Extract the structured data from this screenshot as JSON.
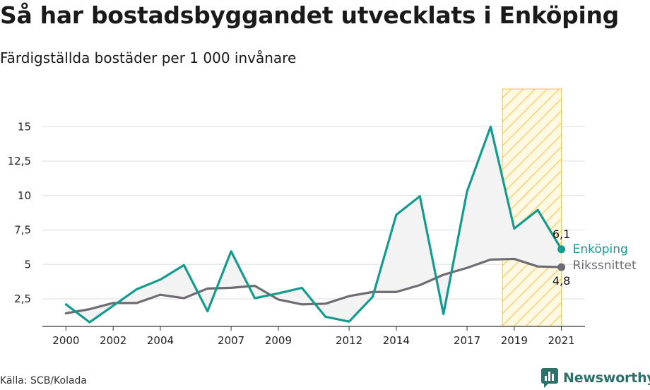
{
  "title": "Så har bostadsbyggandet utvecklats i Enköping",
  "subtitle": "Färdigställda bostäder per 1 000 invånare",
  "source": "Källa: SCB/Kolada",
  "brand": {
    "name": "Newsworthy",
    "icon": "newsworthy-logo-icon",
    "color": "#2f6f6a"
  },
  "chart_data": {
    "type": "line",
    "x": [
      2000,
      2001,
      2002,
      2003,
      2004,
      2005,
      2006,
      2007,
      2008,
      2009,
      2010,
      2011,
      2012,
      2013,
      2014,
      2015,
      2016,
      2017,
      2018,
      2019,
      2020,
      2021
    ],
    "series": [
      {
        "name": "Enköping",
        "color": "#139c8e",
        "values": [
          2.1,
          0.8,
          2.0,
          3.2,
          3.9,
          4.95,
          1.6,
          5.95,
          2.55,
          2.9,
          3.3,
          1.2,
          0.85,
          2.65,
          8.6,
          9.95,
          1.4,
          10.3,
          15.0,
          7.6,
          8.95,
          6.1
        ],
        "end_value_label": "6,1"
      },
      {
        "name": "Rikssnittet",
        "color": "#6f6b72",
        "values": [
          1.45,
          1.75,
          2.2,
          2.2,
          2.8,
          2.55,
          3.25,
          3.3,
          3.45,
          2.45,
          2.1,
          2.15,
          2.7,
          3.0,
          3.0,
          3.5,
          4.25,
          4.75,
          5.35,
          5.4,
          4.85,
          4.8
        ],
        "end_value_label": "4,8"
      }
    ],
    "x_tick_labels": [
      "2000",
      "2002",
      "2004",
      "2007",
      "2009",
      "2012",
      "2014",
      "2017",
      "2019",
      "2021"
    ],
    "y_ticks": [
      2.5,
      5,
      7.5,
      10,
      12.5,
      15
    ],
    "y_tick_labels": [
      "2,5",
      "5",
      "7,5",
      "10",
      "12,5",
      "15"
    ],
    "ylim": [
      0.5,
      16.5
    ],
    "xlim": [
      1999.0,
      2022.0
    ],
    "highlight_range": [
      2018.5,
      2021.0
    ],
    "highlight_color": "#f5c242",
    "grid": true,
    "fill_between_color": "#f3f3f3"
  }
}
